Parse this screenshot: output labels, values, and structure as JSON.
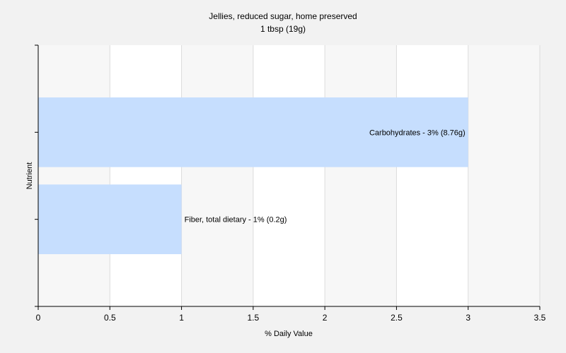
{
  "chart_data": {
    "type": "bar",
    "orientation": "horizontal",
    "title": "Jellies, reduced sugar, home preserved",
    "subtitle": "1 tbsp (19g)",
    "xlabel": "% Daily Value",
    "ylabel": "Nutrient",
    "xlim": [
      0,
      3.5
    ],
    "x_ticks": [
      "0",
      "0.5",
      "1",
      "1.5",
      "2",
      "2.5",
      "3",
      "3.5"
    ],
    "grid": "vertical",
    "bar_color": "#c6defe",
    "categories": [
      "Carbohydrates",
      "Fiber, total dietary"
    ],
    "values": [
      3,
      1
    ],
    "bar_labels": [
      "Carbohydrates - 3% (8.76g)",
      "Fiber, total dietary - 1% (0.2g)"
    ]
  }
}
